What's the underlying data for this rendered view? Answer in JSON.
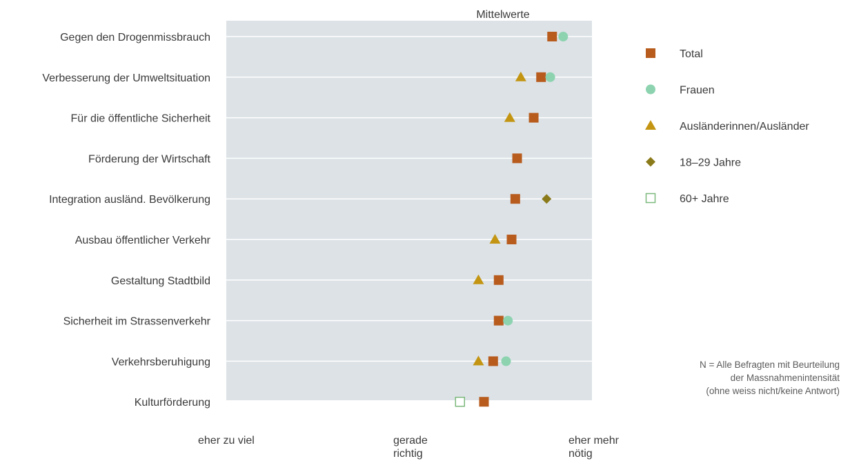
{
  "chart_data": {
    "type": "scatter",
    "title": "Mittelwerte",
    "categories": [
      "Gegen den Drogenmissbrauch",
      "Verbesserung der Umweltsituation",
      "Für die öffentliche Sicherheit",
      "Förderung der Wirtschaft",
      "Integration ausländ. Bevölkerung",
      "Ausbau öffentlicher Verkehr",
      "Gestaltung Stadtbild",
      "Sicherheit im Strassenverkehr",
      "Verkehrsberuhigung",
      "Kulturförderung"
    ],
    "x_ticks": [
      {
        "value": 1,
        "lines": [
          "eher zu viel"
        ]
      },
      {
        "value": 2,
        "lines": [
          "gerade",
          "richtig"
        ]
      },
      {
        "value": 3,
        "lines": [
          "eher mehr",
          "nötig"
        ]
      }
    ],
    "xlim": [
      0.85,
      3.1
    ],
    "series": [
      {
        "name": "Total",
        "marker": "square",
        "color": "#b85c1e",
        "values": [
          2.75,
          2.69,
          2.65,
          2.56,
          2.55,
          2.53,
          2.46,
          2.46,
          2.43,
          2.38
        ]
      },
      {
        "name": "Frauen",
        "marker": "circle",
        "color": "#8dd3b0",
        "values": [
          2.81,
          2.74,
          null,
          null,
          null,
          null,
          null,
          2.51,
          2.5,
          null
        ]
      },
      {
        "name": "Ausländerinnen/Ausländer",
        "marker": "triangle",
        "color": "#c39512",
        "values": [
          null,
          2.58,
          2.52,
          null,
          null,
          2.44,
          2.35,
          null,
          2.35,
          null
        ]
      },
      {
        "name": "18–29 Jahre",
        "marker": "diamond",
        "color": "#8b7a1a",
        "values": [
          null,
          null,
          null,
          null,
          2.72,
          null,
          null,
          null,
          null,
          null
        ]
      },
      {
        "name": "60+ Jahre",
        "marker": "square-open",
        "color": "#7cb87c",
        "values": [
          null,
          null,
          null,
          null,
          null,
          null,
          null,
          null,
          null,
          2.25
        ]
      }
    ],
    "grid": true,
    "legend_position": "right",
    "colors": {
      "plot_background": "#dce2e6",
      "gridline": "#ffffff"
    }
  },
  "note": {
    "lines": [
      "N = Alle Befragten mit Beurteilung",
      "der Massnahmenintensität",
      "(ohne weiss nicht/keine Antwort)"
    ]
  }
}
